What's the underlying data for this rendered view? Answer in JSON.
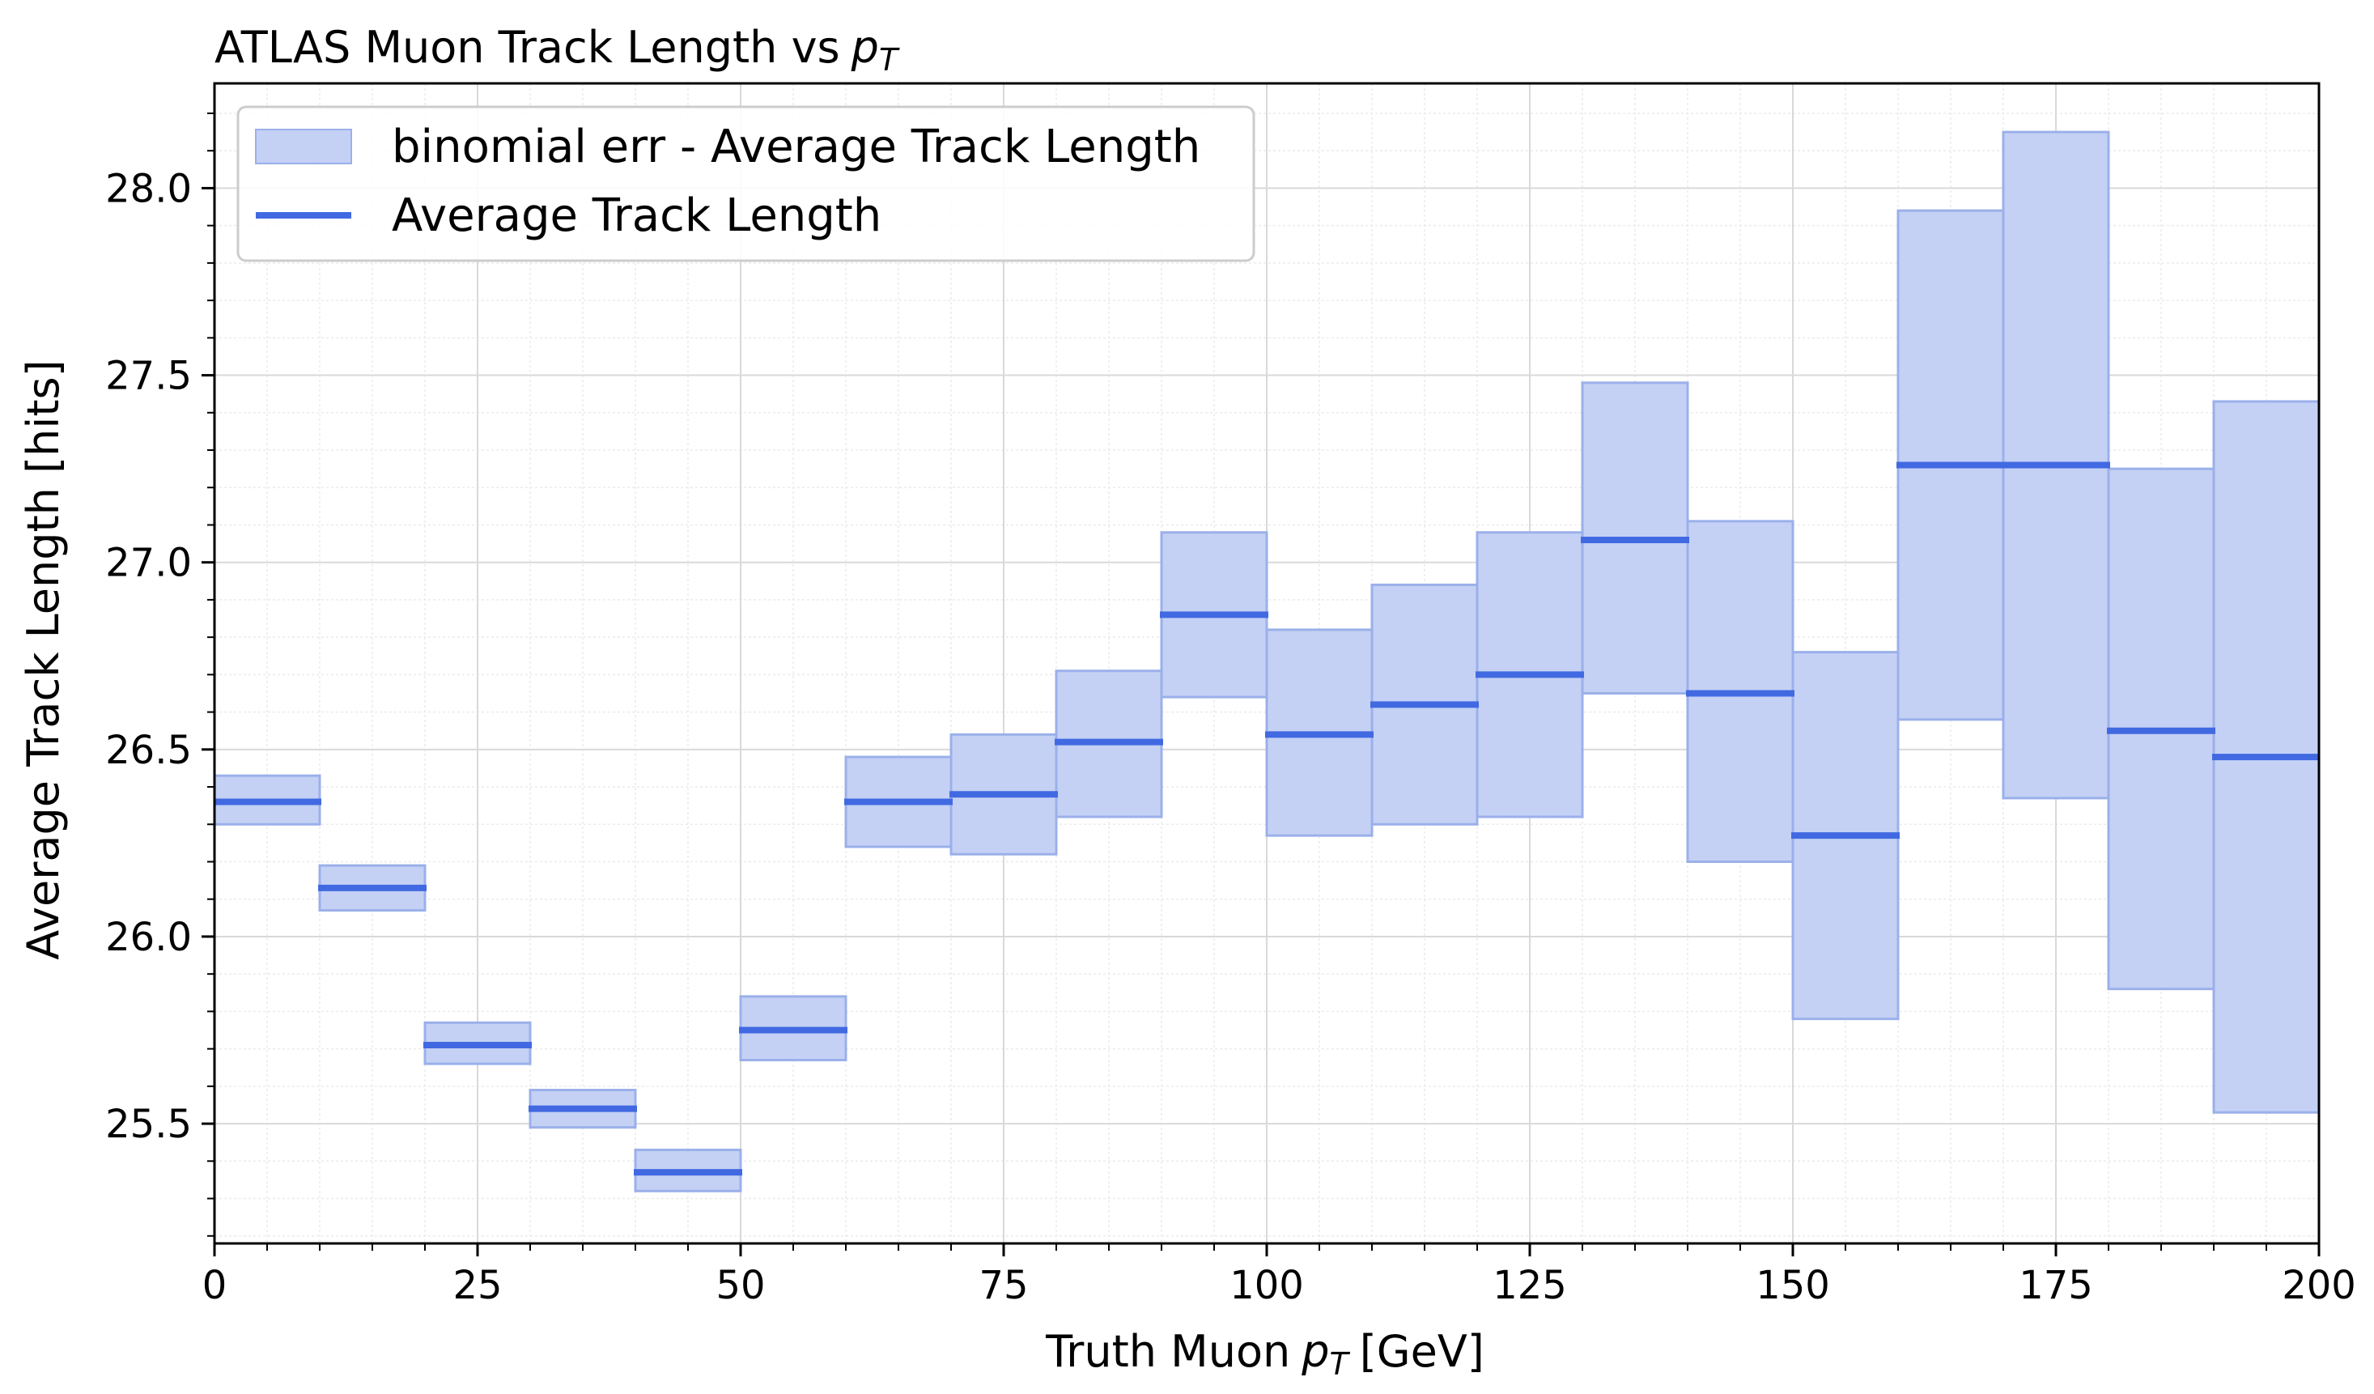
{
  "chart_data": {
    "type": "bar",
    "title": "ATLAS Muon Track Length vs",
    "title_math": "p",
    "title_math_sub": "T",
    "xlabel": "Truth Muon",
    "xlabel_math": "p",
    "xlabel_math_sub": "T",
    "xlabel_unit": "[GeV]",
    "ylabel": "Average Track Length [hits]",
    "xlim": [
      0,
      200
    ],
    "ylim": [
      25.18,
      28.28
    ],
    "grid": true,
    "minor_grid": true,
    "legend_position": "upper-left",
    "xticks": [
      0,
      25,
      50,
      75,
      100,
      125,
      150,
      175,
      200
    ],
    "xtick_labels": [
      "0",
      "25",
      "50",
      "75",
      "100",
      "125",
      "150",
      "175",
      "200"
    ],
    "yticks": [
      25.5,
      26.0,
      26.5,
      27.0,
      27.5,
      28.0
    ],
    "ytick_labels": [
      "25.5",
      "26.0",
      "26.5",
      "27.0",
      "27.5",
      "28.0"
    ],
    "bin_edges": [
      0,
      10,
      20,
      30,
      40,
      50,
      60,
      70,
      80,
      90,
      100,
      110,
      120,
      130,
      140,
      150,
      160,
      170,
      180,
      190,
      200
    ],
    "series": [
      {
        "name": "binomial err - Average Track Length",
        "kind": "error-band",
        "color": "#c4d1f5",
        "edge_color": "#9bb0ea",
        "low": [
          26.3,
          26.07,
          25.66,
          25.49,
          25.32,
          25.67,
          26.24,
          26.22,
          26.32,
          26.64,
          26.27,
          26.3,
          26.32,
          26.65,
          26.2,
          25.78,
          26.58,
          26.37,
          25.86,
          25.53
        ],
        "high": [
          26.43,
          26.19,
          25.77,
          25.59,
          25.43,
          25.84,
          26.48,
          26.54,
          26.71,
          27.08,
          26.82,
          26.94,
          27.08,
          27.48,
          27.11,
          26.76,
          27.94,
          28.15,
          27.25,
          27.43
        ]
      },
      {
        "name": "Average Track Length",
        "kind": "step-line",
        "color": "#4169e1",
        "values": [
          26.36,
          26.13,
          25.71,
          25.54,
          25.37,
          25.75,
          26.36,
          26.38,
          26.52,
          26.86,
          26.54,
          26.62,
          26.7,
          27.06,
          26.65,
          26.27,
          27.26,
          27.26,
          26.55,
          26.48
        ]
      }
    ]
  }
}
